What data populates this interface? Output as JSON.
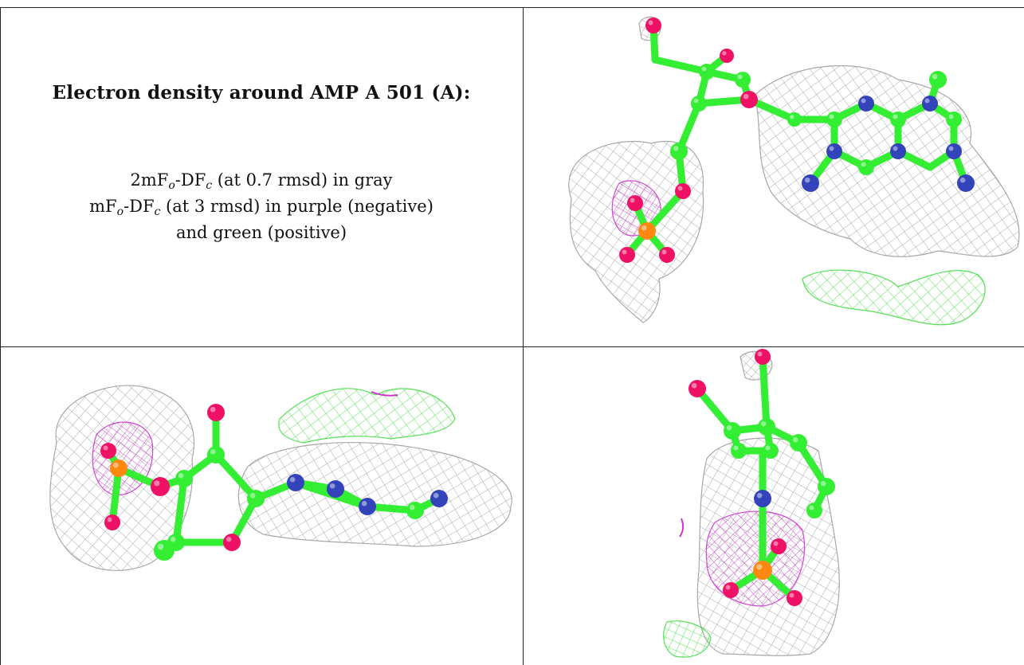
{
  "caption": {
    "title": "Electron density around AMP A 501 (A):",
    "line1": {
      "prefix": "2mF",
      "sub1": "o",
      "mid": "-DF",
      "sub2": "c",
      "suffix": " (at 0.7 rmsd) in gray"
    },
    "line2": {
      "prefix": "mF",
      "sub1": "o",
      "mid": "-DF",
      "sub2": "c",
      "suffix": " (at 3 rmsd) in purple (negative)"
    },
    "line3": "and green (positive)"
  },
  "colors": {
    "carbon": "#33ee33",
    "oxygen": "#ee1166",
    "nitrogen": "#3344bb",
    "phosphorus": "#ff8811",
    "density_2fofc": "#9a9a9a",
    "density_negative": "#cc33cc",
    "density_positive": "#44dd44",
    "border": "#222222"
  },
  "panels": [
    {
      "name": "view-top-right"
    },
    {
      "name": "view-bottom-left"
    },
    {
      "name": "view-bottom-right"
    }
  ]
}
